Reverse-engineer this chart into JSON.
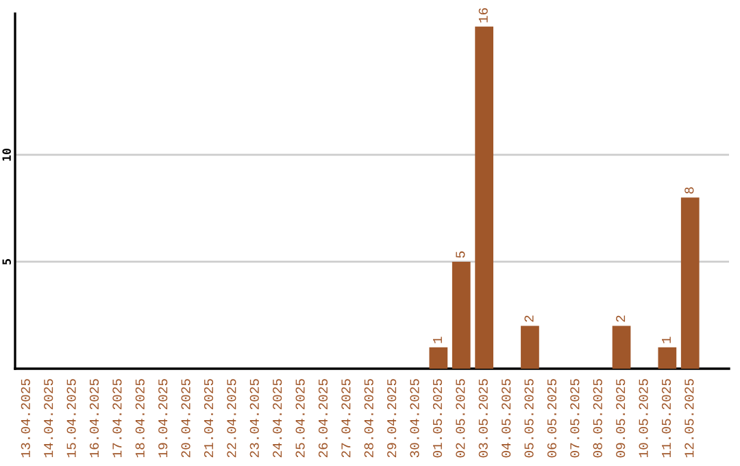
{
  "chart_data": {
    "type": "bar",
    "categories": [
      "13.04.2025",
      "14.04.2025",
      "15.04.2025",
      "16.04.2025",
      "17.04.2025",
      "18.04.2025",
      "19.04.2025",
      "20.04.2025",
      "21.04.2025",
      "22.04.2025",
      "23.04.2025",
      "24.04.2025",
      "25.04.2025",
      "26.04.2025",
      "27.04.2025",
      "28.04.2025",
      "29.04.2025",
      "30.04.2025",
      "01.05.2025",
      "02.05.2025",
      "03.05.2025",
      "04.05.2025",
      "05.05.2025",
      "06.05.2025",
      "07.05.2025",
      "08.05.2025",
      "09.05.2025",
      "10.05.2025",
      "11.05.2025",
      "12.05.2025"
    ],
    "values": [
      0,
      0,
      0,
      0,
      0,
      0,
      0,
      0,
      0,
      0,
      0,
      0,
      0,
      0,
      0,
      0,
      0,
      0,
      1,
      5,
      16,
      0,
      2,
      0,
      0,
      0,
      2,
      0,
      1,
      8
    ],
    "value_labels": [
      null,
      null,
      null,
      null,
      null,
      null,
      null,
      null,
      null,
      null,
      null,
      null,
      null,
      null,
      null,
      null,
      null,
      null,
      "1",
      "5",
      "16",
      null,
      "2",
      null,
      null,
      null,
      "2",
      null,
      "1",
      "8"
    ],
    "color": "#a0572a",
    "ylim": [
      0,
      16.6
    ],
    "yticks": [
      5,
      10
    ],
    "grid": "y"
  }
}
